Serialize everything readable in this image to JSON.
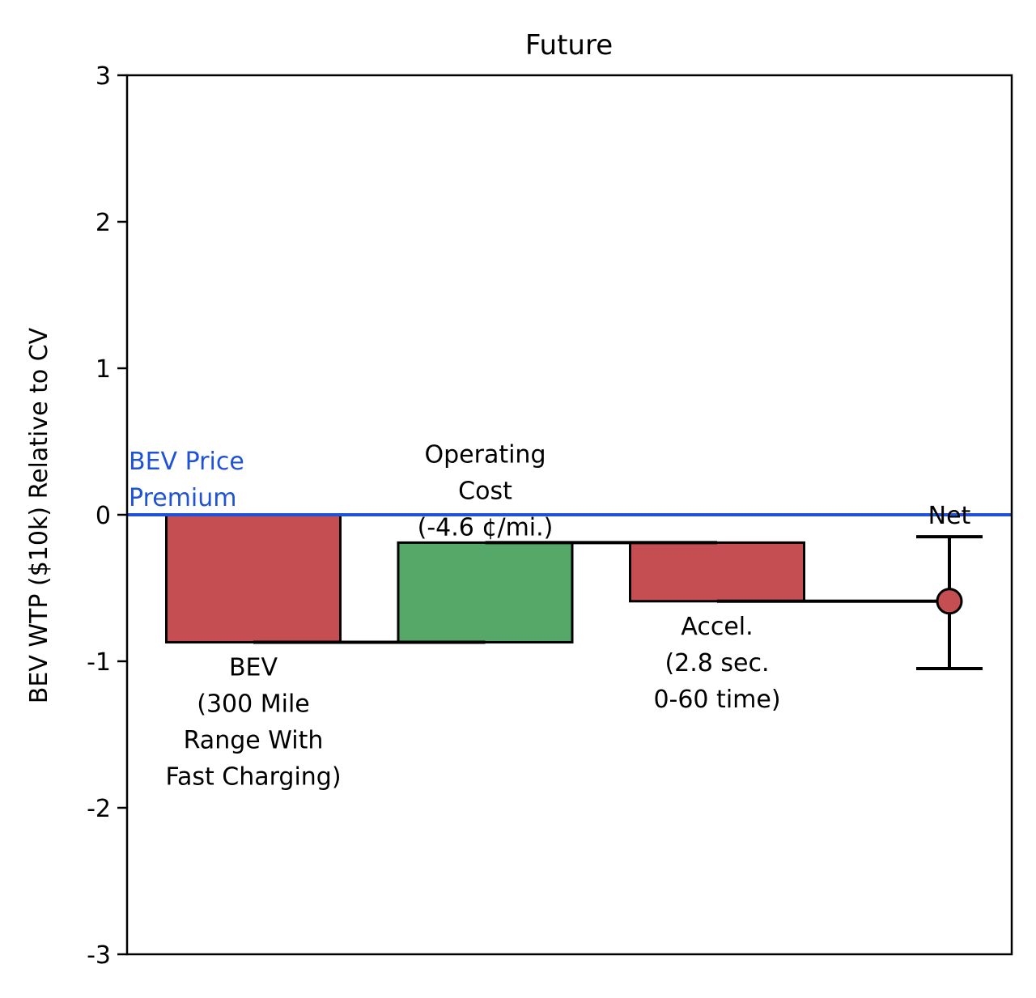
{
  "chart_data": {
    "type": "waterfall",
    "title": "Future",
    "ylabel": "BEV WTP ($10k) Relative to CV",
    "xlabel": "",
    "ylim": [
      -3,
      3
    ],
    "yticks": [
      3,
      2,
      1,
      0,
      -1,
      -2,
      -3
    ],
    "ytick_labels": [
      "3",
      "2",
      "1",
      "0",
      "-1",
      "-2",
      "-3"
    ],
    "grid": false,
    "reference_line": {
      "value": 0,
      "label": [
        "BEV Price",
        "Premium"
      ],
      "color": "#1f52d6"
    },
    "steps": [
      {
        "label": [
          "BEV",
          "(300 Mile",
          "Range With",
          "Fast Charging)"
        ],
        "start": 0,
        "end": -0.87,
        "color": "#c44e52",
        "label_position": "below"
      },
      {
        "label": [
          "Operating",
          "Cost",
          "(-4.6 ¢/mi.)"
        ],
        "start": -0.87,
        "end": -0.19,
        "color": "#55a868",
        "label_position": "above"
      },
      {
        "label": [
          "Accel.",
          "(2.8 sec.",
          "0-60 time)"
        ],
        "start": -0.19,
        "end": -0.59,
        "color": "#c44e52",
        "label_position": "below"
      }
    ],
    "net": {
      "label": "Net",
      "value": -0.59,
      "error_low": -1.05,
      "error_high": -0.15,
      "color": "#c44e52"
    }
  }
}
